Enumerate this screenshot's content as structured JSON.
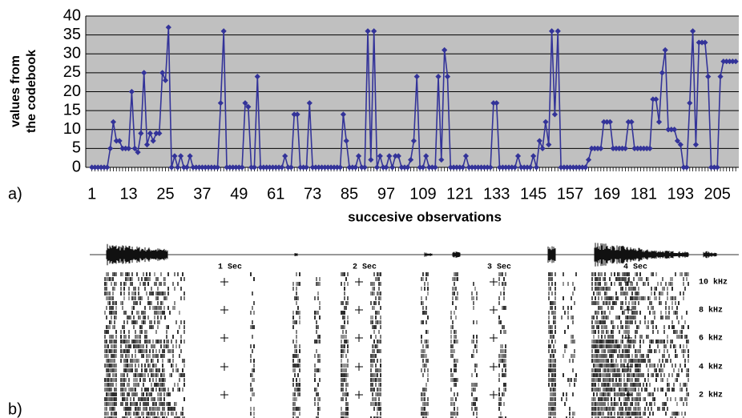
{
  "chart_data": {
    "type": "line",
    "ylabel": [
      "values from",
      "the codebook"
    ],
    "xlabel": "succesive observations",
    "x": [
      1,
      2,
      3,
      4,
      5,
      6,
      7,
      8,
      9,
      10,
      11,
      12,
      13,
      14,
      15,
      16,
      17,
      18,
      19,
      20,
      21,
      22,
      23,
      24,
      25,
      26,
      27,
      28,
      29,
      30,
      31,
      32,
      33,
      34,
      35,
      36,
      37,
      38,
      39,
      40,
      41,
      42,
      43,
      44,
      45,
      46,
      47,
      48,
      49,
      50,
      51,
      52,
      53,
      54,
      55,
      56,
      57,
      58,
      59,
      60,
      61,
      62,
      63,
      64,
      65,
      66,
      67,
      68,
      69,
      70,
      71,
      72,
      73,
      74,
      75,
      76,
      77,
      78,
      79,
      80,
      81,
      82,
      83,
      84,
      85,
      86,
      87,
      88,
      89,
      90,
      91,
      92,
      93,
      94,
      95,
      96,
      97,
      98,
      99,
      100,
      101,
      102,
      103,
      104,
      105,
      106,
      107,
      108,
      109,
      110,
      111,
      112,
      113,
      114,
      115,
      116,
      117,
      118,
      119,
      120,
      121,
      122,
      123,
      124,
      125,
      126,
      127,
      128,
      129,
      130,
      131,
      132,
      133,
      134,
      135,
      136,
      137,
      138,
      139,
      140,
      141,
      142,
      143,
      144,
      145,
      146,
      147,
      148,
      149,
      150,
      151,
      152,
      153,
      154,
      155,
      156,
      157,
      158,
      159,
      160,
      161,
      162,
      163,
      164,
      165,
      166,
      167,
      168,
      169,
      170,
      171,
      172,
      173,
      174,
      175,
      176,
      177,
      178,
      179,
      180,
      181,
      182,
      183,
      184,
      185,
      186,
      187,
      188,
      189,
      190,
      191,
      192,
      193,
      194,
      195,
      196,
      197,
      198,
      199,
      200,
      201,
      202,
      203,
      204,
      205,
      206,
      207,
      208,
      209,
      210,
      211
    ],
    "series": [
      {
        "color": "#333399",
        "values": [
          0,
          0,
          0,
          0,
          0,
          0,
          5,
          12,
          7,
          7,
          5,
          5,
          5,
          20,
          5,
          4,
          9,
          25,
          6,
          9,
          7,
          9,
          9,
          25,
          23,
          37,
          0,
          3,
          0,
          3,
          0,
          0,
          3,
          0,
          0,
          0,
          0,
          0,
          0,
          0,
          0,
          0,
          17,
          36,
          0,
          0,
          0,
          0,
          0,
          0,
          17,
          16,
          0,
          0,
          24,
          0,
          0,
          0,
          0,
          0,
          0,
          0,
          0,
          3,
          0,
          0,
          14,
          14,
          0,
          0,
          0,
          17,
          0,
          0,
          0,
          0,
          0,
          0,
          0,
          0,
          0,
          0,
          14,
          7,
          0,
          0,
          0,
          3,
          0,
          0,
          36,
          2,
          36,
          0,
          3,
          0,
          0,
          3,
          0,
          3,
          3,
          0,
          0,
          0,
          2,
          7,
          24,
          0,
          0,
          3,
          0,
          0,
          0,
          24,
          2,
          31,
          24,
          0,
          0,
          0,
          0,
          0,
          3,
          0,
          0,
          0,
          0,
          0,
          0,
          0,
          0,
          17,
          17,
          0,
          0,
          0,
          0,
          0,
          0,
          3,
          0,
          0,
          0,
          0,
          3,
          0,
          7,
          5,
          12,
          6,
          36,
          14,
          36,
          0,
          0,
          0,
          0,
          0,
          0,
          0,
          0,
          0,
          2,
          5,
          5,
          5,
          5,
          12,
          12,
          12,
          5,
          5,
          5,
          5,
          5,
          12,
          12,
          5,
          5,
          5,
          5,
          5,
          5,
          18,
          18,
          12,
          25,
          31,
          10,
          10,
          10,
          7,
          6,
          0,
          0,
          17,
          36,
          6,
          33,
          33,
          33,
          24,
          0,
          0,
          0,
          24,
          28,
          28,
          28,
          28,
          28
        ]
      }
    ],
    "xlim": [
      -1,
      212
    ],
    "xticks": [
      1,
      13,
      25,
      37,
      49,
      61,
      73,
      85,
      97,
      109,
      121,
      133,
      145,
      157,
      169,
      181,
      193,
      205
    ],
    "ylim": [
      0,
      40
    ],
    "yticks": [
      0,
      5,
      10,
      15,
      20,
      25,
      30,
      35,
      40
    ],
    "grid": true
  },
  "panel_labels": [
    "a)",
    "b)"
  ],
  "spectrogram": {
    "time_labels": [
      "1 Sec",
      "2 Sec",
      "3 Sec",
      "4 Sec"
    ],
    "freq_labels": [
      "10 kHz",
      "8 kHz",
      "6 kHz",
      "4 kHz",
      "2 kHz"
    ]
  }
}
